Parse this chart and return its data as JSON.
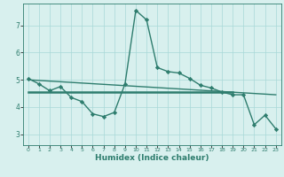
{
  "xlabel": "Humidex (Indice chaleur)",
  "background_color": "#d8f0ee",
  "line_color": "#2e7d6e",
  "xlim": [
    -0.5,
    23.5
  ],
  "ylim": [
    2.6,
    7.8
  ],
  "yticks": [
    3,
    4,
    5,
    6,
    7
  ],
  "xticks": [
    0,
    1,
    2,
    3,
    4,
    5,
    6,
    7,
    8,
    9,
    10,
    11,
    12,
    13,
    14,
    15,
    16,
    17,
    18,
    19,
    20,
    21,
    22,
    23
  ],
  "series1_x": [
    0,
    1,
    2,
    3,
    4,
    5,
    6,
    7,
    8,
    9,
    10,
    11,
    12,
    13,
    14,
    15,
    16,
    17,
    18,
    19,
    20,
    21,
    22,
    23
  ],
  "series1_y": [
    5.05,
    4.85,
    4.6,
    4.75,
    4.35,
    4.2,
    3.75,
    3.65,
    3.8,
    4.85,
    7.55,
    7.2,
    5.45,
    5.3,
    5.25,
    5.05,
    4.8,
    4.7,
    4.55,
    4.45,
    4.45,
    3.35,
    3.7,
    3.2
  ],
  "series2_x": [
    0,
    19
  ],
  "series2_y": [
    4.55,
    4.55
  ],
  "series3_x": [
    0,
    23
  ],
  "series3_y": [
    5.0,
    4.45
  ],
  "marker": "D",
  "markersize": 2.2,
  "linewidth": 1.0,
  "linewidth_thick": 1.8
}
